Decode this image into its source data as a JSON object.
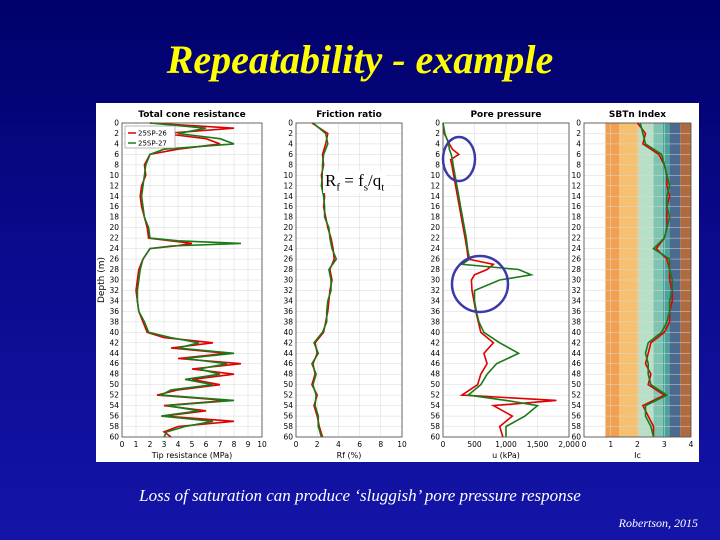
{
  "slide": {
    "title": "Repeatability - example",
    "caption": "Loss of saturation can produce ‘sluggish’ pore pressure response",
    "credit": "Robertson, 2015",
    "formula": {
      "r": "R",
      "f": "f",
      "eq": " = f",
      "s": "s",
      "slash": "/q",
      "t": "t"
    }
  },
  "colors": {
    "series1": "#e00000",
    "series2": "#1a7a1a",
    "circle": "#3a3aa8"
  },
  "chart_data": [
    {
      "type": "line",
      "title": "Total cone resistance",
      "xlabel": "Tip resistance (MPa)",
      "ylabel": "Depth (m)",
      "xlim": [
        0,
        10
      ],
      "ylim": [
        60,
        0
      ],
      "xticks": [
        "0",
        "1",
        "2",
        "3",
        "4",
        "5",
        "6",
        "7",
        "8",
        "9",
        "10"
      ],
      "legend": [
        "25SP-26",
        "25SP-27"
      ],
      "legend_position": "top-left",
      "series": [
        {
          "name": "25SP-26",
          "depth": [
            0,
            1,
            2,
            3,
            4,
            5,
            6,
            8,
            10,
            12,
            14,
            16,
            18,
            20,
            22,
            22.5,
            23,
            23.5,
            24,
            26,
            28,
            30,
            32,
            34,
            36,
            38,
            40,
            41,
            42,
            43,
            44,
            45,
            46,
            47,
            48,
            49,
            50,
            51,
            52,
            53,
            54,
            55,
            56,
            57,
            58,
            59,
            60
          ],
          "values": [
            2,
            8,
            3,
            6,
            7,
            4,
            2,
            1.6,
            1.7,
            1.4,
            1.3,
            1.4,
            1.6,
            1.8,
            1.9,
            3.5,
            5,
            3.8,
            2,
            1.5,
            1.2,
            1.1,
            1,
            1.1,
            1.2,
            1.5,
            1.8,
            3,
            6.5,
            3.5,
            7.5,
            4,
            8.5,
            5,
            8,
            5,
            7,
            4,
            2.5,
            7.5,
            3,
            6,
            3,
            8,
            4,
            3,
            3.5
          ]
        },
        {
          "name": "25SP-27",
          "depth": [
            0,
            1,
            2,
            3,
            4,
            5,
            6,
            8,
            10,
            12,
            14,
            16,
            18,
            20,
            22,
            22.5,
            23,
            23.5,
            24,
            26,
            28,
            30,
            32,
            34,
            36,
            38,
            40,
            41,
            42,
            43,
            44,
            45,
            46,
            47,
            48,
            49,
            50,
            51,
            52,
            53,
            54,
            55,
            56,
            57,
            58,
            59,
            60
          ],
          "values": [
            2,
            6,
            4,
            7,
            8,
            3,
            2,
            1.7,
            1.6,
            1.5,
            1.4,
            1.5,
            1.6,
            1.9,
            2,
            4,
            8.5,
            3.5,
            2,
            1.5,
            1.3,
            1.2,
            1.1,
            1.1,
            1.2,
            1.6,
            1.9,
            3.5,
            5.5,
            4,
            8,
            4.5,
            7.5,
            5.5,
            7,
            4.5,
            6.5,
            3.5,
            2.8,
            8,
            3.2,
            5.5,
            2.8,
            6.5,
            4.5,
            3.2,
            3
          ]
        }
      ]
    },
    {
      "type": "line",
      "title": "Friction ratio",
      "xlabel": "Rf (%)",
      "ylim": [
        60,
        0
      ],
      "xlim": [
        0,
        10
      ],
      "xticks": [
        "0",
        "2",
        "4",
        "6",
        "8",
        "10"
      ],
      "series": [
        {
          "name": "25SP-26",
          "depth": [
            0,
            2,
            4,
            6,
            8,
            10,
            12,
            14,
            16,
            18,
            20,
            22,
            24,
            26,
            28,
            30,
            32,
            34,
            36,
            38,
            40,
            42,
            44,
            46,
            48,
            50,
            52,
            54,
            56,
            58,
            60
          ],
          "values": [
            1.5,
            3,
            2.8,
            2.5,
            2.6,
            2.4,
            2.5,
            2.7,
            2.6,
            2.8,
            3,
            3.3,
            3.5,
            3.6,
            3.2,
            3.4,
            3.2,
            3.1,
            3,
            2.8,
            2.6,
            1.8,
            2,
            1.6,
            1.8,
            1.5,
            2,
            1.7,
            2,
            2.2,
            2.5
          ]
        },
        {
          "name": "25SP-27",
          "depth": [
            0,
            2,
            4,
            6,
            8,
            10,
            12,
            14,
            16,
            18,
            20,
            22,
            24,
            26,
            28,
            30,
            32,
            34,
            36,
            38,
            40,
            42,
            44,
            46,
            48,
            50,
            52,
            54,
            56,
            58,
            60
          ],
          "values": [
            1.6,
            2.8,
            3,
            2.6,
            2.5,
            2.5,
            2.4,
            2.6,
            2.7,
            2.7,
            3.1,
            3.2,
            3.4,
            3.8,
            3.1,
            3.3,
            3.3,
            3,
            2.9,
            2.9,
            2.5,
            1.7,
            2.1,
            1.5,
            1.9,
            1.6,
            1.9,
            1.8,
            2.1,
            2.1,
            2.4
          ]
        }
      ]
    },
    {
      "type": "line",
      "title": "Pore pressure",
      "xlabel": "u (kPa)",
      "ylim": [
        60,
        0
      ],
      "xlim": [
        0,
        2000
      ],
      "xticks": [
        "0",
        "500",
        "1,000",
        "1,500",
        "2,000"
      ],
      "series": [
        {
          "name": "25SP-26",
          "depth": [
            0,
            2,
            4,
            5,
            6,
            7,
            8,
            10,
            12,
            14,
            16,
            18,
            20,
            22,
            24,
            26,
            27,
            28,
            29,
            30,
            32,
            34,
            36,
            38,
            40,
            42,
            44,
            46,
            48,
            50,
            52,
            53,
            54,
            56,
            58,
            60
          ],
          "values": [
            0,
            20,
            100,
            150,
            250,
            120,
            140,
            170,
            200,
            230,
            260,
            290,
            320,
            350,
            380,
            400,
            800,
            700,
            500,
            450,
            460,
            490,
            520,
            560,
            600,
            800,
            650,
            700,
            600,
            550,
            300,
            1800,
            800,
            1100,
            900,
            950
          ]
        },
        {
          "name": "25SP-27",
          "depth": [
            0,
            2,
            4,
            5,
            6,
            7,
            8,
            10,
            12,
            14,
            16,
            18,
            20,
            22,
            24,
            26,
            27,
            28,
            29,
            30,
            32,
            34,
            36,
            38,
            40,
            42,
            44,
            46,
            48,
            50,
            52,
            53,
            54,
            56,
            58,
            60
          ],
          "values": [
            0,
            30,
            90,
            100,
            130,
            150,
            160,
            190,
            220,
            250,
            280,
            310,
            340,
            370,
            390,
            420,
            300,
            1200,
            1400,
            900,
            500,
            500,
            530,
            570,
            650,
            900,
            1200,
            850,
            700,
            600,
            400,
            1000,
            1500,
            1300,
            1000,
            1000
          ]
        }
      ]
    },
    {
      "type": "line",
      "title": "SBTn Index",
      "xlabel": "Ic",
      "ylim": [
        60,
        0
      ],
      "xlim": [
        0,
        4
      ],
      "xticks": [
        "0",
        "1",
        "2",
        "3",
        "4"
      ],
      "zones": [
        {
          "from": 0.8,
          "to": 1.31,
          "color": "#f0a050"
        },
        {
          "from": 1.31,
          "to": 2.05,
          "color": "#f5c070"
        },
        {
          "from": 2.05,
          "to": 2.6,
          "color": "#b8e0c8"
        },
        {
          "from": 2.6,
          "to": 2.95,
          "color": "#7ec4b0"
        },
        {
          "from": 2.95,
          "to": 3.2,
          "color": "#4aa29a"
        },
        {
          "from": 3.2,
          "to": 3.6,
          "color": "#4a6a90"
        },
        {
          "from": 3.6,
          "to": 4.0,
          "color": "#b06a40"
        }
      ],
      "series": [
        {
          "name": "25SP-26",
          "depth": [
            0,
            2,
            4,
            6,
            8,
            10,
            12,
            14,
            16,
            18,
            20,
            22,
            24,
            26,
            28,
            30,
            32,
            34,
            36,
            38,
            40,
            42,
            44,
            46,
            48,
            50,
            52,
            54,
            56,
            58,
            60
          ],
          "values": [
            2.0,
            2.3,
            2.2,
            2.8,
            3.0,
            3.1,
            3.1,
            3.2,
            3.1,
            3.1,
            3.1,
            3.0,
            2.7,
            3.1,
            3.2,
            3.2,
            3.3,
            3.3,
            3.2,
            3.2,
            3.0,
            2.5,
            2.4,
            2.3,
            2.5,
            2.4,
            3.0,
            2.2,
            2.4,
            2.6,
            2.6
          ]
        },
        {
          "name": "25SP-27",
          "depth": [
            0,
            2,
            4,
            6,
            8,
            10,
            12,
            14,
            16,
            18,
            20,
            22,
            24,
            26,
            28,
            30,
            32,
            34,
            36,
            38,
            40,
            42,
            44,
            46,
            48,
            50,
            52,
            54,
            56,
            58,
            60
          ],
          "values": [
            2.1,
            2.2,
            2.3,
            2.9,
            3.0,
            3.1,
            3.2,
            3.1,
            3.1,
            3.2,
            3.1,
            3.0,
            2.6,
            3.2,
            3.2,
            3.3,
            3.3,
            3.2,
            3.2,
            3.1,
            2.9,
            2.4,
            2.3,
            2.4,
            2.4,
            2.5,
            3.1,
            2.3,
            2.3,
            2.5,
            2.6
          ]
        }
      ]
    }
  ],
  "depth_ticks": [
    "0",
    "2",
    "4",
    "6",
    "8",
    "10",
    "12",
    "14",
    "16",
    "18",
    "20",
    "22",
    "24",
    "26",
    "28",
    "30",
    "32",
    "34",
    "36",
    "38",
    "40",
    "42",
    "44",
    "46",
    "48",
    "50",
    "52",
    "54",
    "56",
    "58",
    "60"
  ]
}
